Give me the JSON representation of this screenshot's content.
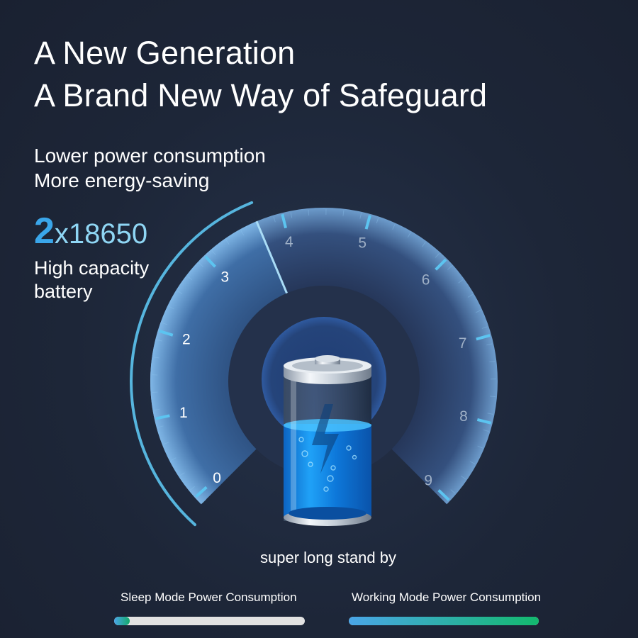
{
  "headline": {
    "line1": "A New Generation",
    "line2": "A Brand New Way of Safeguard"
  },
  "features": {
    "line1": "Lower power consumption",
    "line2": "More energy-saving"
  },
  "battery_spec": {
    "count": "2",
    "model": "x18650",
    "desc1": "High capacity",
    "desc2": "battery"
  },
  "gauge": {
    "labels": [
      "0",
      "1",
      "2",
      "3",
      "4",
      "5",
      "6",
      "7",
      "8",
      "9"
    ],
    "needle_value": 3.7,
    "accent": "#5cc4f0"
  },
  "standby_text": "super long stand by",
  "bars": [
    {
      "label": "Sleep Mode Power Consumption",
      "percent": 8,
      "track": "#e2e2e2",
      "fill_from": "#4aa6e8",
      "fill_to": "#13a86a"
    },
    {
      "label": "Working Mode Power Consumption",
      "percent": 100,
      "track": "#e2e2e2",
      "fill_from": "#4aa6e8",
      "fill_to": "#13b96e"
    }
  ]
}
